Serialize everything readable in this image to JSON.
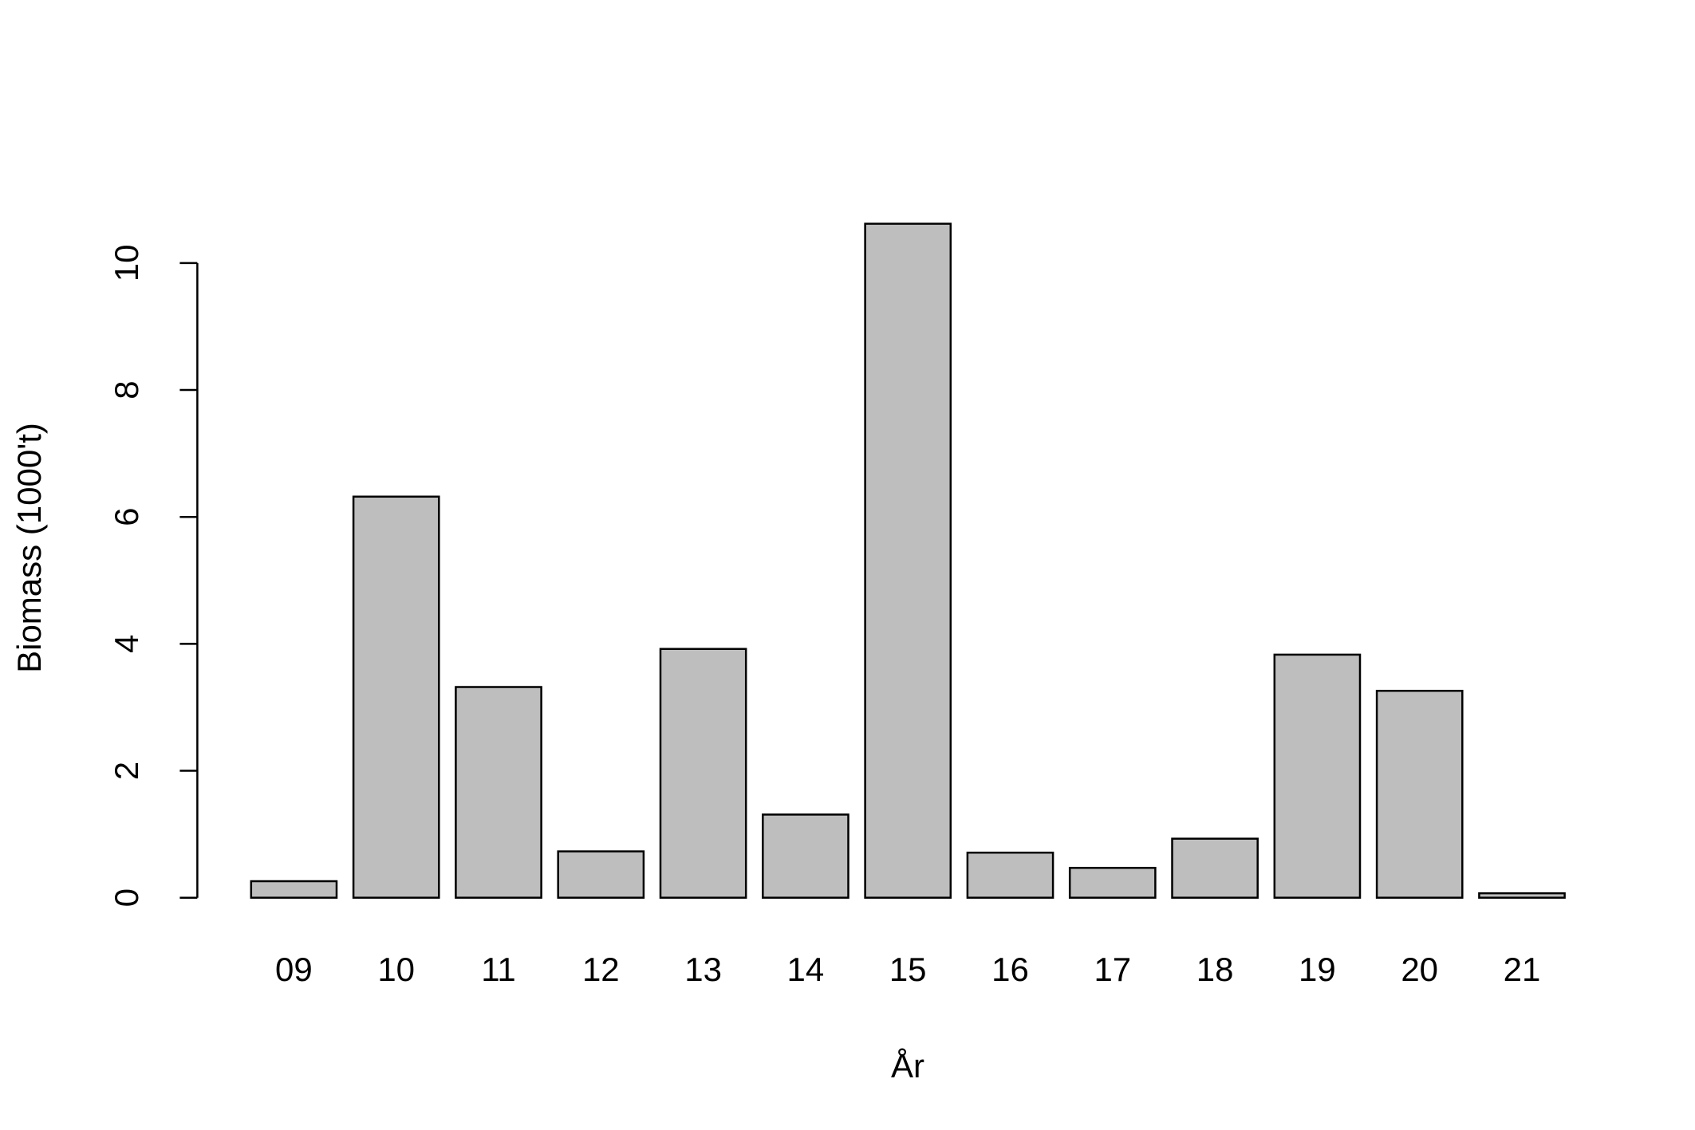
{
  "chart_data": {
    "type": "bar",
    "x_label": "År",
    "y_label": "Biomass (1000't)",
    "categories": [
      "09",
      "10",
      "11",
      "12",
      "13",
      "14",
      "15",
      "16",
      "17",
      "18",
      "19",
      "20",
      "21"
    ],
    "values": [
      0.26,
      6.32,
      3.32,
      0.73,
      3.92,
      1.31,
      10.62,
      0.71,
      0.47,
      0.93,
      3.83,
      3.26,
      0.07
    ],
    "color": "#bebebe",
    "ylim": [
      0,
      10
    ],
    "yticks": [
      0,
      2,
      4,
      6,
      8,
      10
    ],
    "grid": false
  }
}
